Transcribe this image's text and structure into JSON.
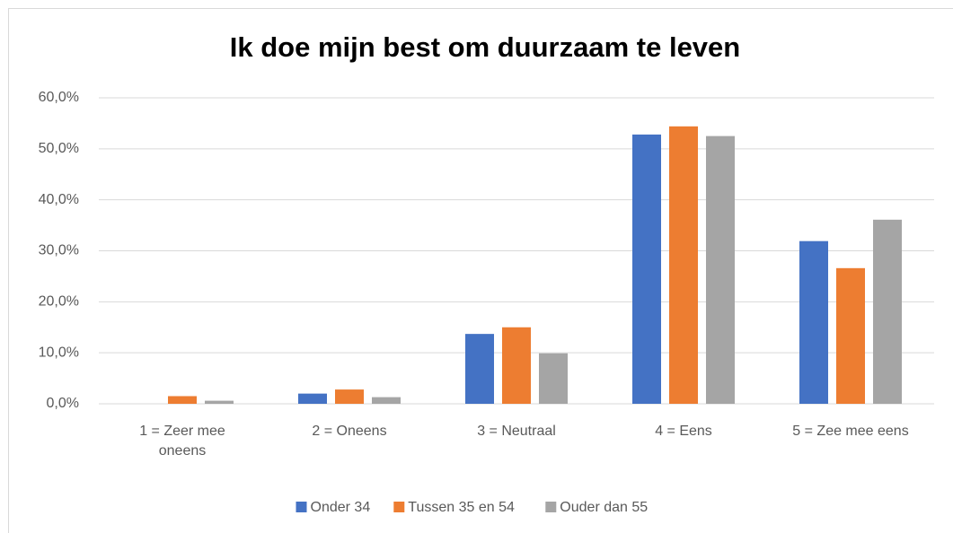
{
  "chart_data": {
    "type": "bar",
    "title": "Ik doe mijn best om duurzaam te leven",
    "categories": [
      "1 = Zeer mee oneens",
      "2 = Oneens",
      "3 = Neutraal",
      "4 = Eens",
      "5 = Zee mee eens"
    ],
    "series": [
      {
        "name": "Onder 34",
        "color": "#4472c4",
        "values": [
          0,
          2.0,
          13.7,
          52.8,
          31.9
        ]
      },
      {
        "name": "Tussen 35 en 54",
        "color": "#ed7d31",
        "values": [
          1.5,
          2.8,
          15.0,
          54.4,
          26.6
        ]
      },
      {
        "name": "Ouder dan 55",
        "color": "#a5a5a5",
        "values": [
          0.6,
          1.3,
          9.9,
          52.5,
          36.1
        ]
      }
    ],
    "ylim": [
      0,
      60
    ],
    "yticks": [
      {
        "value": 0,
        "label": "0,0%"
      },
      {
        "value": 10,
        "label": "10,0%"
      },
      {
        "value": 20,
        "label": "20,0%"
      },
      {
        "value": 30,
        "label": "30,0%"
      },
      {
        "value": 40,
        "label": "40,0%"
      },
      {
        "value": 50,
        "label": "50,0%"
      },
      {
        "value": 60,
        "label": "60,0%"
      }
    ],
    "grid": true,
    "legend": "bottom"
  }
}
